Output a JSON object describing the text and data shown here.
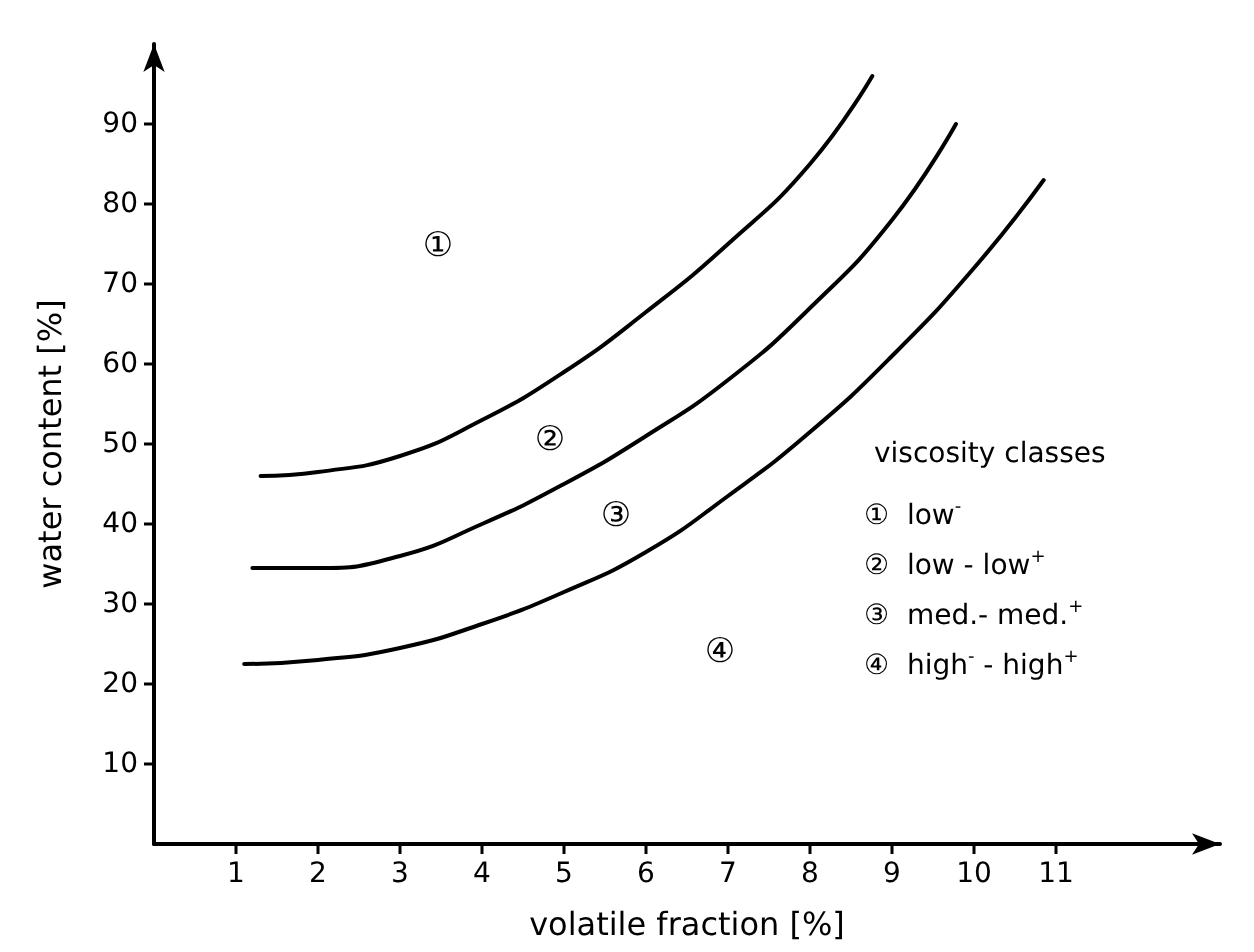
{
  "chart_data": {
    "type": "line",
    "xlabel": "volatile fraction [%]",
    "ylabel": "water content [%]",
    "xlim": [
      0,
      13
    ],
    "ylim": [
      0,
      100
    ],
    "xticks": [
      1,
      2,
      3,
      4,
      5,
      6,
      7,
      8,
      9,
      10,
      11
    ],
    "yticks": [
      10,
      20,
      30,
      40,
      50,
      60,
      70,
      80,
      90
    ],
    "grid": false,
    "marker": "none",
    "line_style": "solid",
    "series": [
      {
        "color": "#000000",
        "x": [
          1.3,
          2,
          3,
          4,
          5,
          6,
          7,
          8,
          8.76
        ],
        "values": [
          46,
          46.5,
          48.5,
          53,
          59,
          66.5,
          75,
          85,
          96
        ]
      },
      {
        "color": "#000000",
        "x": [
          1.2,
          2,
          3,
          4,
          5,
          6,
          7,
          8,
          9,
          9.78
        ],
        "values": [
          34.5,
          34.5,
          36,
          40,
          45,
          51,
          58,
          67,
          78,
          90
        ]
      },
      {
        "color": "#000000",
        "x": [
          1.1,
          2,
          3,
          4,
          5,
          6,
          7,
          8,
          9,
          10,
          10.85
        ],
        "values": [
          22.5,
          23,
          24.5,
          27.5,
          31.5,
          36.5,
          43.5,
          51.5,
          61,
          72,
          83
        ]
      }
    ],
    "annotations": [
      "①",
      "②",
      "③",
      "④",
      "viscosity classes",
      "①  low$^{-}$",
      "②  low - low$^{+}$",
      "③  med.- med.$^{+}$",
      "④  high$^{-}$ - high$^{+}$"
    ]
  }
}
